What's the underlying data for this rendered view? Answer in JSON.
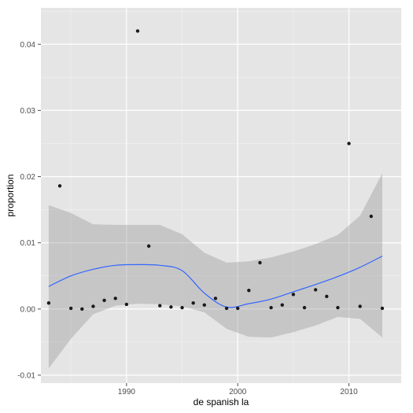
{
  "chart_data": {
    "type": "scatter",
    "xlabel": "de spanish la",
    "ylabel": "proportion",
    "xlim": [
      1982.3,
      2014.7
    ],
    "ylim": [
      -0.0112,
      0.0455
    ],
    "x_ticks": [
      1990,
      2000,
      2010
    ],
    "x_tick_labels": [
      "1990",
      "2000",
      "2010"
    ],
    "y_ticks": [
      -0.01,
      0.0,
      0.01,
      0.02,
      0.03,
      0.04
    ],
    "y_tick_labels": [
      "-0.01",
      "0.00",
      "0.01",
      "0.02",
      "0.03",
      "0.04"
    ],
    "grid": true,
    "points": [
      {
        "x": 1983,
        "y": 0.0009
      },
      {
        "x": 1984,
        "y": 0.0186
      },
      {
        "x": 1985,
        "y": 0.0001
      },
      {
        "x": 1986,
        "y": 0.0
      },
      {
        "x": 1987,
        "y": 0.0004
      },
      {
        "x": 1988,
        "y": 0.0013
      },
      {
        "x": 1989,
        "y": 0.0016
      },
      {
        "x": 1990,
        "y": 0.0007
      },
      {
        "x": 1991,
        "y": 0.042
      },
      {
        "x": 1992,
        "y": 0.0095
      },
      {
        "x": 1993,
        "y": 0.0005
      },
      {
        "x": 1994,
        "y": 0.0003
      },
      {
        "x": 1995,
        "y": 0.0002
      },
      {
        "x": 1996,
        "y": 0.0009
      },
      {
        "x": 1997,
        "y": 0.0006
      },
      {
        "x": 1998,
        "y": 0.0016
      },
      {
        "x": 1999,
        "y": 0.0001
      },
      {
        "x": 2000,
        "y": 0.0001
      },
      {
        "x": 2001,
        "y": 0.0028
      },
      {
        "x": 2002,
        "y": 0.007
      },
      {
        "x": 2003,
        "y": 0.0002
      },
      {
        "x": 2004,
        "y": 0.0006
      },
      {
        "x": 2005,
        "y": 0.0022
      },
      {
        "x": 2006,
        "y": 0.0002
      },
      {
        "x": 2007,
        "y": 0.0029
      },
      {
        "x": 2008,
        "y": 0.0019
      },
      {
        "x": 2009,
        "y": 0.0002
      },
      {
        "x": 2010,
        "y": 0.025
      },
      {
        "x": 2011,
        "y": 0.0004
      },
      {
        "x": 2012,
        "y": 0.014
      },
      {
        "x": 2013,
        "y": 0.0001
      }
    ],
    "smooth": {
      "x": [
        1983,
        1985,
        1987,
        1989,
        1991,
        1993,
        1995,
        1997,
        1999,
        2001,
        2003,
        2005,
        2007,
        2009,
        2011,
        2013
      ],
      "y": [
        0.0034,
        0.005,
        0.006,
        0.0066,
        0.0067,
        0.0066,
        0.0058,
        0.0024,
        0.0003,
        0.0008,
        0.0015,
        0.0026,
        0.0037,
        0.0049,
        0.0063,
        0.008
      ],
      "lower": [
        -0.009,
        -0.0045,
        -0.0008,
        0.0005,
        0.0008,
        0.0007,
        0.0004,
        -0.0005,
        -0.003,
        -0.0042,
        -0.0043,
        -0.0035,
        -0.0025,
        -0.0012,
        -0.0015,
        -0.0043
      ],
      "upper": [
        0.0157,
        0.0145,
        0.0128,
        0.0127,
        0.0127,
        0.0127,
        0.0113,
        0.0085,
        0.007,
        0.0072,
        0.0078,
        0.0087,
        0.0098,
        0.0112,
        0.0141,
        0.0205
      ]
    },
    "colors": {
      "panel": "#e5e5e5",
      "grid_major": "#ffffff",
      "grid_minor": "#f2f2f2",
      "point": "#1a1a1a",
      "line": "#3366ff",
      "ribbon": "#999999"
    }
  }
}
